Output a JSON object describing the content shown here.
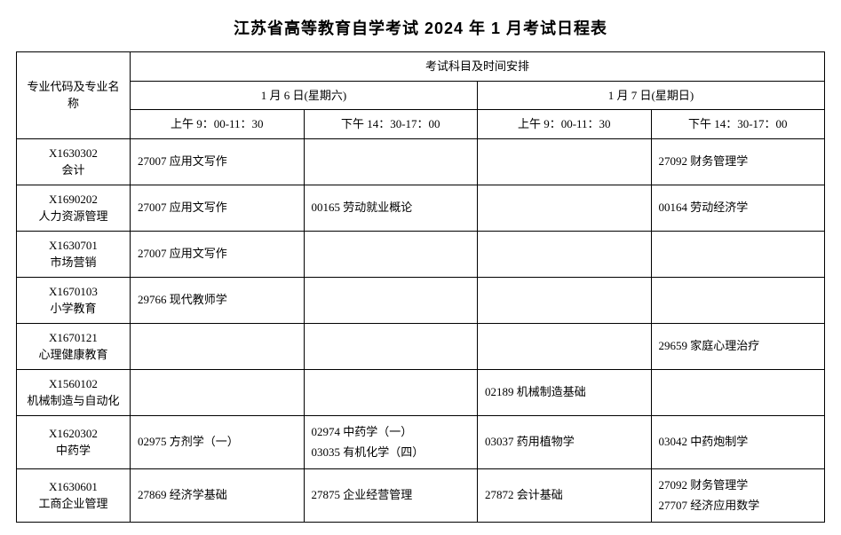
{
  "title": "江苏省高等教育自学考试 2024 年 1 月考试日程表",
  "header": {
    "major": "专业代码及专业名称",
    "top": "考试科目及时间安排",
    "day1": "1 月 6 日(星期六)",
    "day2": "1 月 7 日(星期日)",
    "slot1": "上午 9：00-11：30",
    "slot2": "下午 14：30-17：00",
    "slot3": "上午 9：00-11：30",
    "slot4": "下午 14：30-17：00"
  },
  "rows": [
    {
      "code": "X1630302",
      "name": "会计",
      "slots": [
        [
          "27007 应用文写作"
        ],
        [],
        [],
        [
          "27092 财务管理学"
        ]
      ]
    },
    {
      "code": "X1690202",
      "name": "人力资源管理",
      "slots": [
        [
          "27007 应用文写作"
        ],
        [
          "00165 劳动就业概论"
        ],
        [],
        [
          "00164 劳动经济学"
        ]
      ]
    },
    {
      "code": "X1630701",
      "name": "市场营销",
      "slots": [
        [
          "27007 应用文写作"
        ],
        [],
        [],
        []
      ]
    },
    {
      "code": "X1670103",
      "name": "小学教育",
      "slots": [
        [
          "29766 现代教师学"
        ],
        [],
        [],
        []
      ]
    },
    {
      "code": "X1670121",
      "name": "心理健康教育",
      "slots": [
        [],
        [],
        [],
        [
          "29659 家庭心理治疗"
        ]
      ]
    },
    {
      "code": "X1560102",
      "name": "机械制造与自动化",
      "slots": [
        [],
        [],
        [
          "02189 机械制造基础"
        ],
        []
      ]
    },
    {
      "code": "X1620302",
      "name": "中药学",
      "slots": [
        [
          "02975 方剂学（一）"
        ],
        [
          "02974 中药学（一）",
          "03035 有机化学（四）"
        ],
        [
          "03037 药用植物学"
        ],
        [
          "03042 中药炮制学"
        ]
      ]
    },
    {
      "code": "X1630601",
      "name": "工商企业管理",
      "slots": [
        [
          "27869 经济学基础"
        ],
        [
          "27875 企业经营管理"
        ],
        [
          "27872 会计基础"
        ],
        [
          "27092 财务管理学",
          "27707 经济应用数学"
        ]
      ]
    }
  ]
}
